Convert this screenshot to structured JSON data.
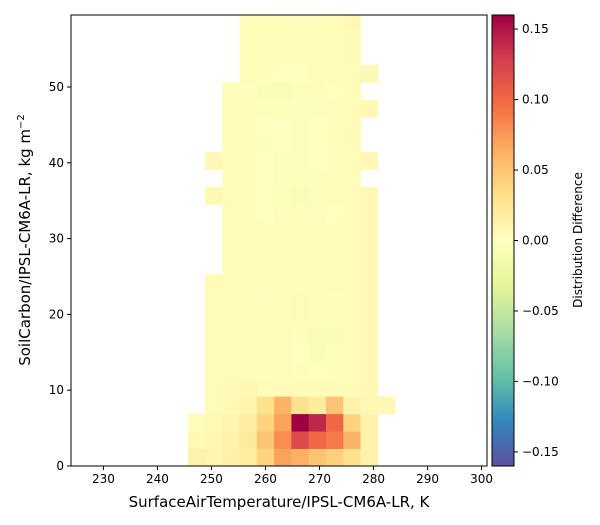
{
  "chart_data": {
    "type": "heatmap",
    "xlabel": "SurfaceAirTemperature/IPSL-CM6A-LR,  K",
    "ylabel": "SoilCarbon/IPSL-CM6A-LR,  kg m",
    "ylabel_superscript": "−2",
    "colorbar_label": "Distribution Difference",
    "xlim": [
      224,
      301
    ],
    "ylim": [
      0,
      59.5
    ],
    "x_ticks": [
      230,
      240,
      250,
      260,
      270,
      280,
      290,
      300
    ],
    "y_ticks": [
      0,
      10,
      20,
      30,
      40,
      50
    ],
    "colorbar_range": [
      -0.16,
      0.16
    ],
    "colorbar_ticks": [
      0.15,
      0.1,
      0.05,
      0.0,
      -0.05,
      -0.1,
      -0.15
    ],
    "colorbar_tick_labels": [
      "0.15",
      "0.10",
      "0.05",
      "0.00",
      "−0.05",
      "−0.10",
      "−0.15"
    ],
    "colormap": "Spectral_r",
    "bin_width_x": 3.2,
    "bin_height_y": 2.3,
    "x_bins_start": 245.6,
    "y_bins_start": 0,
    "cells_note": "rows: [row_index_from_bottom, first_x_bin_index, values...]",
    "rows": [
      [
        0,
        0,
        0.012,
        0.01,
        0.014,
        0.02,
        0.04,
        0.07,
        0.062,
        0.05,
        0.042,
        0.03,
        0.012
      ],
      [
        1,
        0,
        0.006,
        0.008,
        0.012,
        0.022,
        0.05,
        0.08,
        0.12,
        0.1,
        0.09,
        0.06,
        0.012
      ],
      [
        2,
        0,
        0.004,
        0.006,
        0.01,
        0.018,
        0.04,
        0.07,
        0.16,
        0.14,
        0.1,
        0.04,
        0.012
      ],
      [
        3,
        1,
        0.004,
        0.006,
        0.01,
        0.03,
        0.06,
        0.03,
        0.02,
        0.05,
        0.012,
        0.008,
        0.006
      ],
      [
        4,
        1,
        0.004,
        0.006,
        0.008,
        0.004,
        0.004,
        0.004,
        0.004,
        0.004,
        0.004,
        0.006
      ],
      [
        5,
        1,
        0.004,
        0.004,
        0.002,
        0.002,
        0.004,
        0.002,
        0.0,
        0.002,
        0.004,
        0.006
      ],
      [
        6,
        1,
        0.004,
        0.004,
        0.002,
        0.002,
        0.004,
        0.0,
        -0.006,
        -0.004,
        0.004,
        0.006
      ],
      [
        7,
        1,
        0.004,
        0.002,
        0.002,
        0.002,
        0.004,
        0.002,
        -0.008,
        -0.008,
        0.004,
        0.006
      ],
      [
        8,
        1,
        0.004,
        0.002,
        0.002,
        0.002,
        0.002,
        0.004,
        -0.004,
        -0.004,
        0.004,
        0.006
      ],
      [
        9,
        1,
        0.004,
        0.004,
        0.002,
        -0.002,
        0.002,
        0.004,
        0.002,
        0.002,
        0.004,
        0.006
      ],
      [
        10,
        1,
        0.004,
        0.004,
        0.002,
        0.002,
        0.002,
        0.002,
        0.002,
        0.004,
        0.004,
        0.006
      ],
      [
        11,
        2,
        0.004,
        0.002,
        0.002,
        0.002,
        0.002,
        0.002,
        0.002,
        0.004,
        0.006
      ],
      [
        12,
        2,
        0.004,
        0.002,
        0.002,
        0.002,
        0.002,
        0.002,
        0.002,
        0.004,
        0.006
      ],
      [
        13,
        2,
        0.004,
        0.002,
        0.002,
        0.002,
        0.002,
        0.002,
        0.002,
        0.004,
        0.006
      ],
      [
        14,
        2,
        0.004,
        0.002,
        0.0,
        -0.002,
        -0.004,
        -0.002,
        0.0,
        0.004,
        0.006
      ],
      [
        15,
        1,
        0.006,
        0.004,
        0.002,
        0.0,
        -0.004,
        -0.006,
        -0.002,
        0.002,
        0.004,
        0.006
      ],
      [
        16,
        2,
        0.004,
        0.002,
        0.0,
        -0.002,
        -0.004,
        -0.002,
        0.002,
        0.004
      ],
      [
        17,
        1,
        0.006,
        0.004,
        0.002,
        0.0,
        -0.002,
        -0.002,
        0.0,
        0.002,
        0.004,
        0.006
      ],
      [
        18,
        2,
        0.004,
        0.002,
        -0.002,
        0.0,
        -0.002,
        0.0,
        0.002,
        0.004
      ],
      [
        19,
        2,
        0.004,
        0.002,
        0.0,
        0.0,
        -0.002,
        0.0,
        0.002,
        0.004
      ],
      [
        20,
        2,
        0.004,
        0.002,
        -0.002,
        -0.004,
        -0.002,
        -0.002,
        0.002,
        0.004,
        0.006
      ],
      [
        21,
        2,
        0.004,
        -0.002,
        -0.008,
        -0.006,
        -0.004,
        -0.004,
        0.0,
        0.004
      ],
      [
        22,
        3,
        0.004,
        0.002,
        0.0,
        0.0,
        0.002,
        0.002,
        0.004,
        0.006
      ],
      [
        23,
        3,
        0.004,
        0.002,
        0.002,
        0.002,
        0.002,
        0.002,
        0.004
      ],
      [
        24,
        3,
        0.004,
        0.004,
        0.002,
        0.002,
        0.002,
        0.002,
        0.004
      ],
      [
        25,
        3,
        0.004,
        0.004,
        0.002,
        0.002,
        0.002,
        0.004,
        0.006
      ],
      [
        26,
        3,
        0.004,
        0.004,
        0.004,
        0.002,
        0.004,
        0.004,
        0.006
      ],
      [
        27,
        3,
        0.004,
        0.004,
        0.004,
        0.004,
        0.004,
        0.004,
        0.006
      ],
      [
        28,
        3,
        0.004,
        0.004,
        0.004,
        0.004,
        0.004,
        0.004,
        0.004,
        0.006
      ],
      [
        29,
        3,
        0.004,
        0.004,
        0.004,
        0.004,
        0.004,
        0.004,
        0.004,
        0.006
      ]
    ],
    "top_row": [
      30,
      4,
      0.004,
      0.004,
      0.004,
      0.004
    ]
  }
}
